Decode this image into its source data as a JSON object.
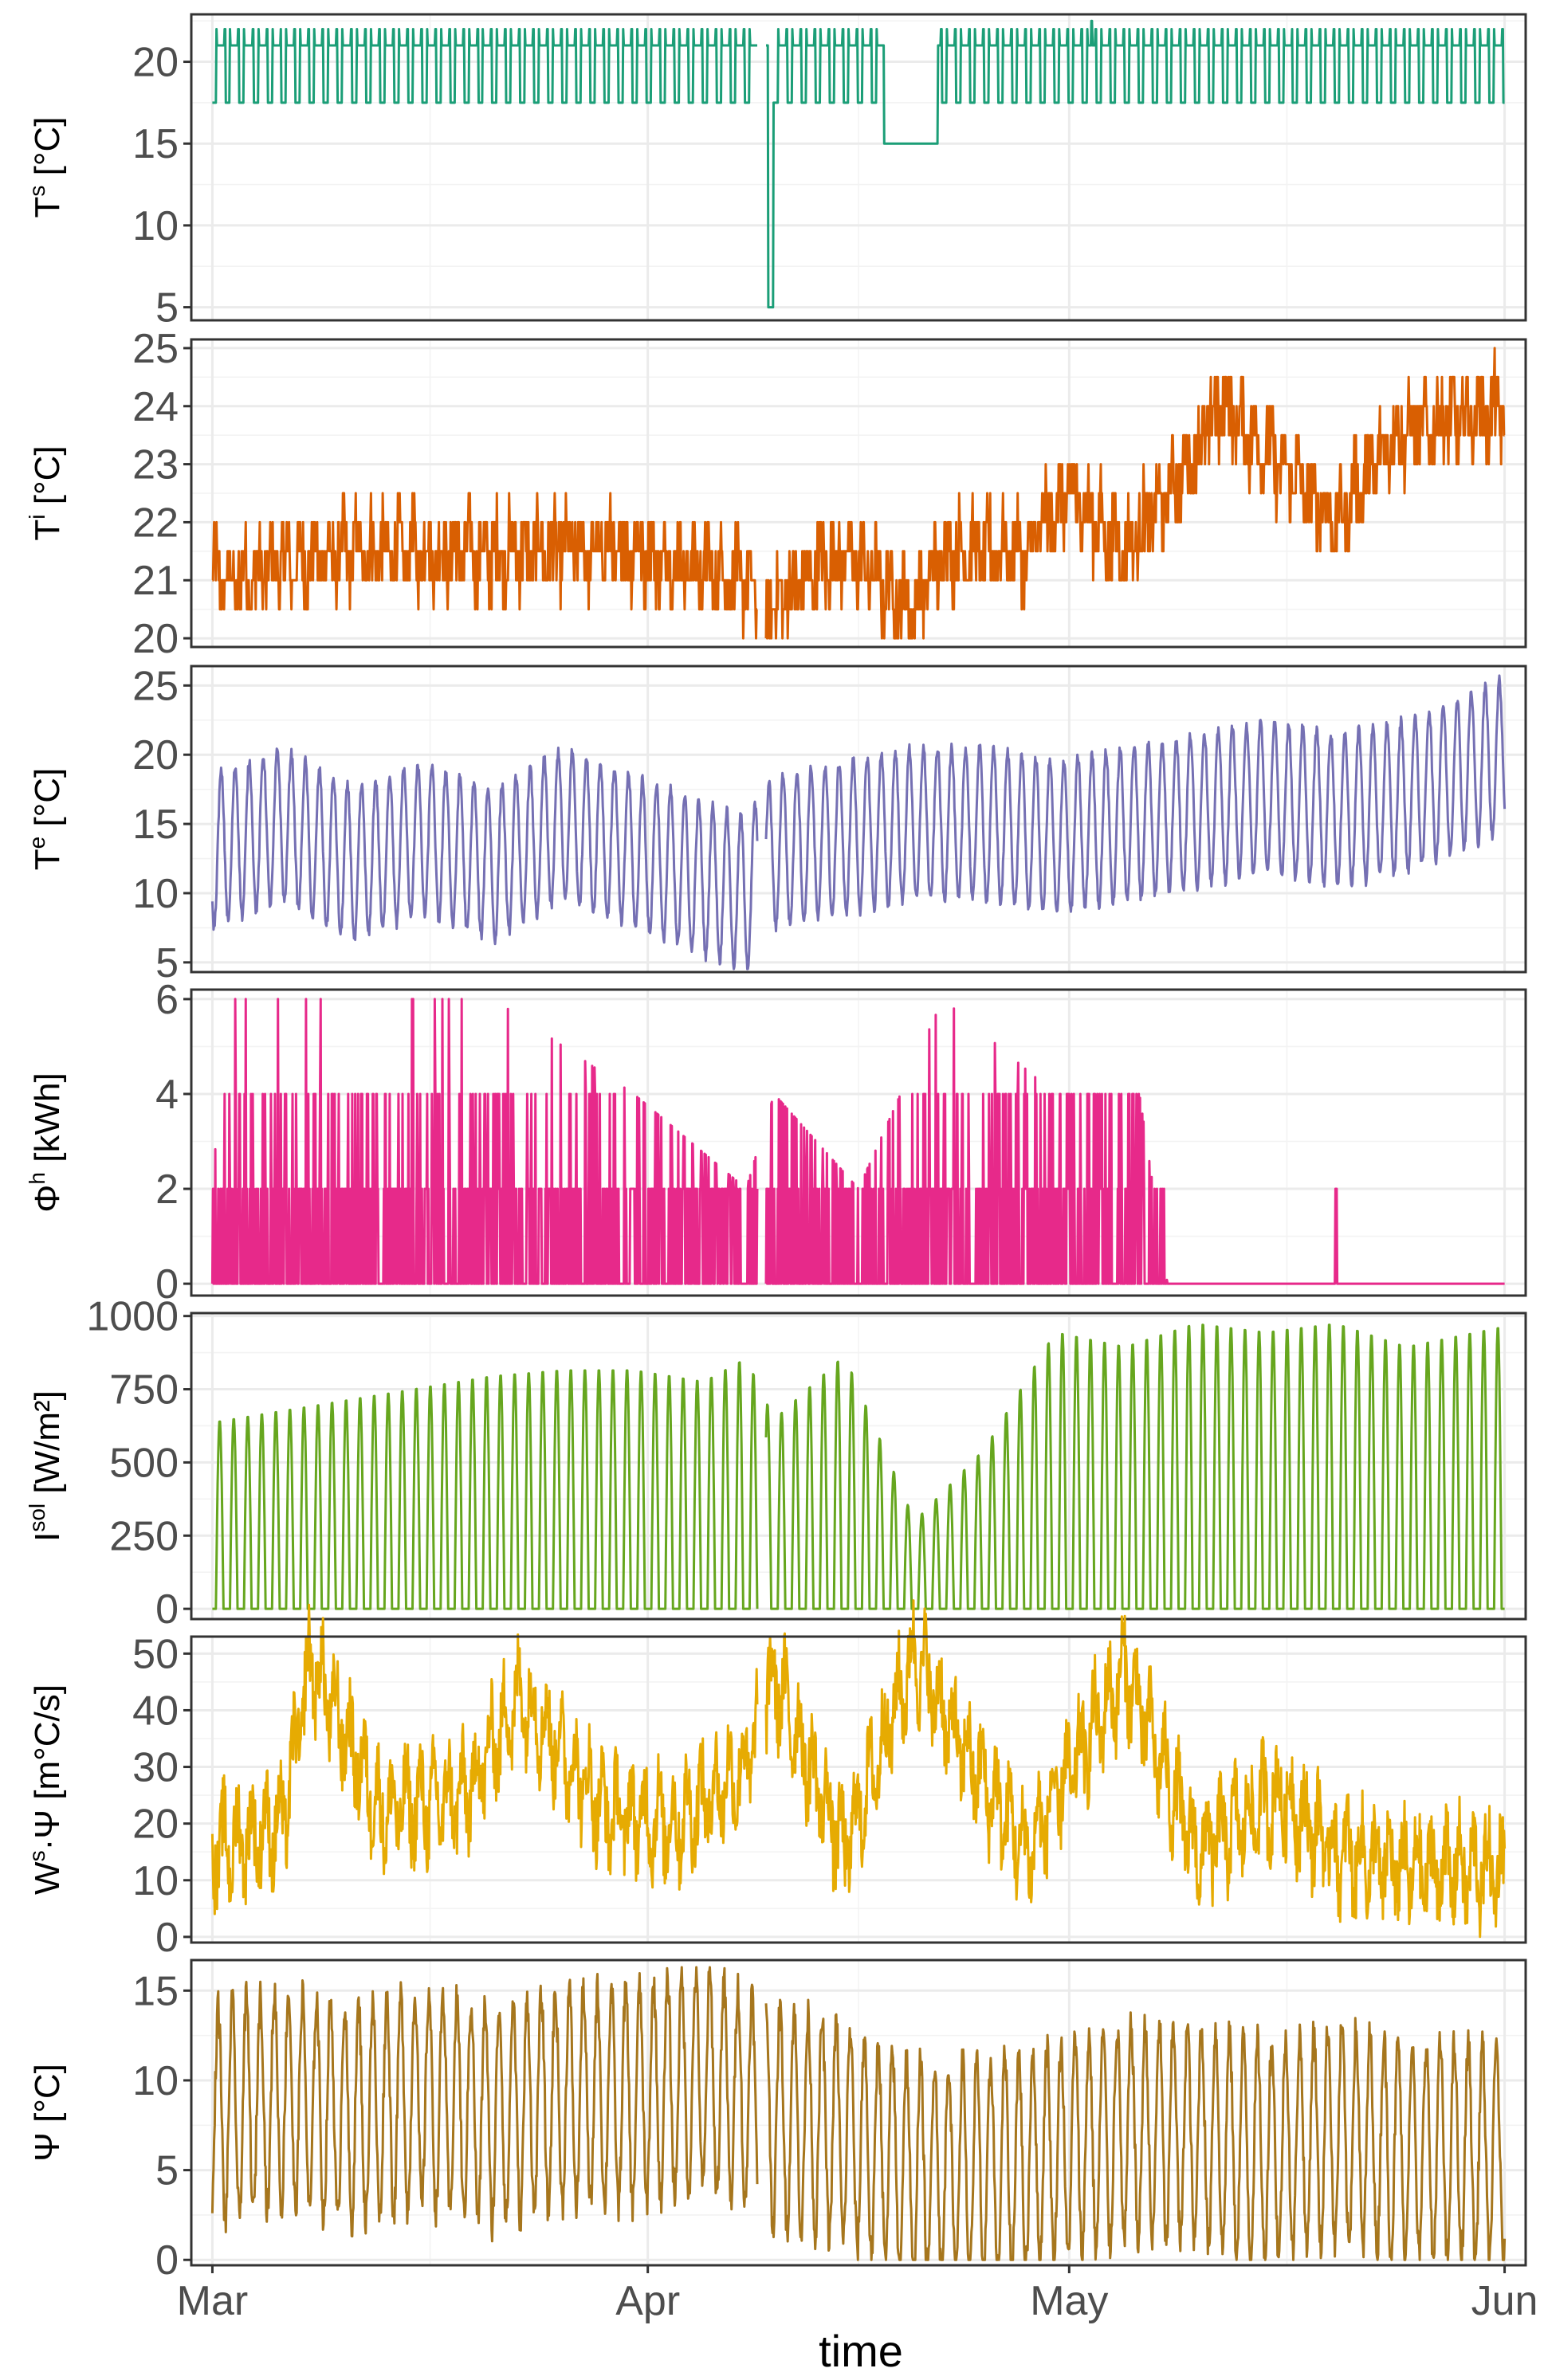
{
  "chart_data": {
    "type": "line",
    "xlabel": "time",
    "x_ticks": [
      "Mar",
      "Apr",
      "May",
      "Jun"
    ],
    "x_tick_days": [
      0,
      31,
      61,
      92
    ],
    "x_range_days": [
      -1.5,
      93.5
    ],
    "gap_days": [
      38.8,
      39.4
    ],
    "panels": [
      {
        "name": "Ts",
        "ylabel_main": "T",
        "ylabel_sup": "s",
        "ylabel_unit": " [°C]",
        "color": "#1b9e77",
        "ylim": [
          4.2,
          22.9
        ],
        "yticks": [
          5,
          10,
          15,
          20
        ],
        "ytick_labels": [
          "5",
          "10",
          "15",
          "20"
        ],
        "series": [
          {
            "day": 0,
            "value": 20
          },
          {
            "day": 0.2,
            "value": 21
          },
          {
            "day": 3,
            "value": 21
          },
          {
            "day": 38.5,
            "value": 21
          },
          {
            "day": 39.5,
            "value": 21
          },
          {
            "day": 39.6,
            "value": 5
          },
          {
            "day": 39.9,
            "value": 5
          },
          {
            "day": 40,
            "value": 21
          },
          {
            "day": 47.7,
            "value": 21
          },
          {
            "day": 47.8,
            "value": 15
          },
          {
            "day": 51.6,
            "value": 15
          },
          {
            "day": 51.7,
            "value": 21
          },
          {
            "day": 92,
            "value": 21
          }
        ],
        "notes": "Daily setpoint cycles between 17.5 and 22 °C; flat 15 °C from ~Apr 17 to Apr 21; short drop to 5 °C around Apr 8."
      },
      {
        "name": "Ti",
        "ylabel_main": "T",
        "ylabel_sup": "i",
        "ylabel_unit": " [°C]",
        "color": "#d95f02",
        "ylim": [
          19.85,
          25.15
        ],
        "yticks": [
          20,
          21,
          22,
          23,
          24,
          25
        ],
        "ytick_labels": [
          "20",
          "21",
          "22",
          "23",
          "24",
          "25"
        ],
        "series": [
          {
            "day": 0,
            "value": 21
          },
          {
            "day": 10,
            "value": 21.5
          },
          {
            "day": 20,
            "value": 21.5
          },
          {
            "day": 30,
            "value": 21.5
          },
          {
            "day": 38,
            "value": 21
          },
          {
            "day": 39.5,
            "value": 20.5
          },
          {
            "day": 45,
            "value": 21.5
          },
          {
            "day": 50,
            "value": 20.5
          },
          {
            "day": 52,
            "value": 21.5
          },
          {
            "day": 58,
            "value": 21.5
          },
          {
            "day": 61,
            "value": 22.5
          },
          {
            "day": 65,
            "value": 21.5
          },
          {
            "day": 68,
            "value": 22.5
          },
          {
            "day": 72,
            "value": 24
          },
          {
            "day": 76,
            "value": 23
          },
          {
            "day": 80,
            "value": 22
          },
          {
            "day": 84,
            "value": 23.5
          },
          {
            "day": 92,
            "value": 24
          }
        ]
      },
      {
        "name": "Te",
        "ylabel_main": "T",
        "ylabel_sup": "e",
        "ylabel_unit": " [°C]",
        "color": "#7570b3",
        "ylim": [
          4.3,
          26.4
        ],
        "yticks": [
          5,
          10,
          15,
          20,
          25
        ],
        "ytick_labels": [
          "5",
          "10",
          "15",
          "20",
          "25"
        ],
        "series": [
          {
            "day": 0,
            "value": 13
          },
          {
            "day": 5,
            "value": 15
          },
          {
            "day": 10,
            "value": 12
          },
          {
            "day": 15,
            "value": 14
          },
          {
            "day": 20,
            "value": 12
          },
          {
            "day": 25,
            "value": 15
          },
          {
            "day": 30,
            "value": 13
          },
          {
            "day": 35,
            "value": 11
          },
          {
            "day": 38,
            "value": 10
          },
          {
            "day": 40,
            "value": 13
          },
          {
            "day": 45,
            "value": 14
          },
          {
            "day": 50,
            "value": 15
          },
          {
            "day": 55,
            "value": 15
          },
          {
            "day": 60,
            "value": 14
          },
          {
            "day": 65,
            "value": 15
          },
          {
            "day": 70,
            "value": 16
          },
          {
            "day": 75,
            "value": 17
          },
          {
            "day": 80,
            "value": 16
          },
          {
            "day": 85,
            "value": 17
          },
          {
            "day": 92,
            "value": 20
          }
        ],
        "notes": "Strong diurnal oscillation of roughly ±6 °C around the trend."
      },
      {
        "name": "Phih",
        "ylabel_main": "Φ",
        "ylabel_sup": "h",
        "ylabel_unit": " [kWh]",
        "color": "#e7298a",
        "ylim": [
          -0.25,
          6.2
        ],
        "yticks": [
          0,
          2,
          4,
          6
        ],
        "ytick_labels": [
          "0",
          "2",
          "4",
          "6"
        ],
        "series": [
          {
            "day": 0,
            "value": 2
          },
          {
            "day": 1,
            "value": 6
          },
          {
            "day": 5,
            "value": 6
          },
          {
            "day": 13,
            "value": 6
          },
          {
            "day": 20,
            "value": 6
          },
          {
            "day": 30,
            "value": 4
          },
          {
            "day": 38,
            "value": 2
          },
          {
            "day": 40,
            "value": 4
          },
          {
            "day": 46,
            "value": 2
          },
          {
            "day": 52,
            "value": 6
          },
          {
            "day": 60,
            "value": 4
          },
          {
            "day": 66,
            "value": 4
          },
          {
            "day": 68,
            "value": 0
          },
          {
            "day": 80,
            "value": 2
          },
          {
            "day": 92,
            "value": 0
          }
        ],
        "notes": "Heating power switching between 0, 2, 4 and 6 kWh; off from ~May 8 except one 2 kWh spike near May 20."
      },
      {
        "name": "Isol",
        "ylabel_main": "I",
        "ylabel_sup": "sol",
        "ylabel_unit": " [W/m²]",
        "color": "#66a61e",
        "ylim": [
          -35,
          1010
        ],
        "yticks": [
          0,
          250,
          500,
          750,
          1000
        ],
        "ytick_labels": [
          "0",
          "250",
          "500",
          "750",
          "1000"
        ],
        "series": [
          {
            "day": 0,
            "value": 640
          },
          {
            "day": 5,
            "value": 680
          },
          {
            "day": 10,
            "value": 720
          },
          {
            "day": 15,
            "value": 760
          },
          {
            "day": 20,
            "value": 800
          },
          {
            "day": 25,
            "value": 820
          },
          {
            "day": 30,
            "value": 820
          },
          {
            "day": 35,
            "value": 780
          },
          {
            "day": 38,
            "value": 860
          },
          {
            "day": 40,
            "value": 650
          },
          {
            "day": 45,
            "value": 870
          },
          {
            "day": 50,
            "value": 300
          },
          {
            "day": 55,
            "value": 550
          },
          {
            "day": 60,
            "value": 950
          },
          {
            "day": 65,
            "value": 900
          },
          {
            "day": 70,
            "value": 980
          },
          {
            "day": 75,
            "value": 950
          },
          {
            "day": 80,
            "value": 980
          },
          {
            "day": 85,
            "value": 900
          },
          {
            "day": 92,
            "value": 970
          }
        ],
        "notes": "Values are daily peaks; each day returns to 0 at night."
      },
      {
        "name": "WsPsi",
        "ylabel_main": "W",
        "ylabel_sup": "s",
        "ylabel_unit": "·Ψ [m°C/s]",
        "color": "#e6ab02",
        "ylim": [
          -1,
          53
        ],
        "yticks": [
          0,
          10,
          20,
          30,
          40,
          50
        ],
        "ytick_labels": [
          "0",
          "10",
          "20",
          "30",
          "40",
          "50"
        ],
        "series": [
          {
            "day": 0,
            "value": 15
          },
          {
            "day": 5,
            "value": 20
          },
          {
            "day": 7,
            "value": 49
          },
          {
            "day": 12,
            "value": 22
          },
          {
            "day": 18,
            "value": 25
          },
          {
            "day": 22,
            "value": 43
          },
          {
            "day": 28,
            "value": 22
          },
          {
            "day": 33,
            "value": 20
          },
          {
            "day": 38,
            "value": 30
          },
          {
            "day": 40,
            "value": 46
          },
          {
            "day": 45,
            "value": 15
          },
          {
            "day": 50,
            "value": 50
          },
          {
            "day": 53,
            "value": 35
          },
          {
            "day": 58,
            "value": 15
          },
          {
            "day": 65,
            "value": 47
          },
          {
            "day": 70,
            "value": 15
          },
          {
            "day": 76,
            "value": 25
          },
          {
            "day": 80,
            "value": 15
          },
          {
            "day": 85,
            "value": 12
          },
          {
            "day": 92,
            "value": 12
          }
        ]
      },
      {
        "name": "Psi",
        "ylabel_main": "Ψ",
        "ylabel_sup": "",
        "ylabel_unit": " [°C]",
        "color": "#a6761d",
        "ylim": [
          -0.3,
          16.7
        ],
        "yticks": [
          0,
          5,
          10,
          15
        ],
        "ytick_labels": [
          "0",
          "5",
          "10",
          "15"
        ],
        "series": [
          {
            "day": 0,
            "value": 8
          },
          {
            "day": 5,
            "value": 9
          },
          {
            "day": 10,
            "value": 8
          },
          {
            "day": 15,
            "value": 9
          },
          {
            "day": 20,
            "value": 8
          },
          {
            "day": 25,
            "value": 9
          },
          {
            "day": 30,
            "value": 9
          },
          {
            "day": 35,
            "value": 10
          },
          {
            "day": 38,
            "value": 9
          },
          {
            "day": 40,
            "value": 8
          },
          {
            "day": 45,
            "value": 7
          },
          {
            "day": 50,
            "value": 5
          },
          {
            "day": 55,
            "value": 5
          },
          {
            "day": 60,
            "value": 6
          },
          {
            "day": 65,
            "value": 7
          },
          {
            "day": 70,
            "value": 7
          },
          {
            "day": 75,
            "value": 6
          },
          {
            "day": 80,
            "value": 7
          },
          {
            "day": 85,
            "value": 6
          },
          {
            "day": 92,
            "value": 6
          }
        ],
        "notes": "Strong diurnal oscillation around the trend, reaching 0 to ~16 °C."
      }
    ]
  }
}
